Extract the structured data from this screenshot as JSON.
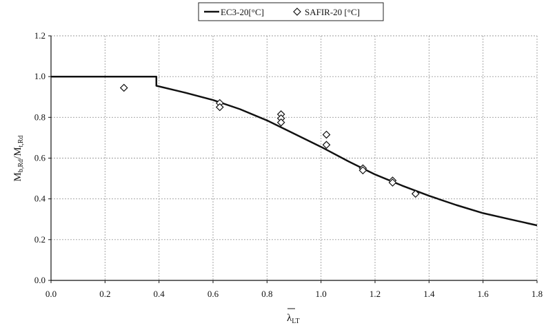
{
  "chart_data": {
    "type": "line",
    "xlim": [
      0.0,
      1.8
    ],
    "ylim": [
      0.0,
      1.2
    ],
    "x_ticks": [
      0.0,
      0.2,
      0.4,
      0.6,
      0.8,
      1.0,
      1.2,
      1.4,
      1.6,
      1.8
    ],
    "y_ticks": [
      0.0,
      0.2,
      0.4,
      0.6,
      0.8,
      1.0,
      1.2
    ],
    "x_tick_labels": [
      "0.0",
      "0.2",
      "0.4",
      "0.6",
      "0.8",
      "1.0",
      "1.2",
      "1.4",
      "1.6",
      "1.8"
    ],
    "y_tick_labels": [
      "0.0",
      "0.2",
      "0.4",
      "0.6",
      "0.8",
      "1.0",
      "1.2"
    ],
    "xlabel": {
      "main": "λ",
      "sub": "LT"
    },
    "ylabel": {
      "part1": "M",
      "sub1": "b,Rd",
      "sep": "/M",
      "sub2": "t,Rd"
    },
    "grid": true,
    "legend_placement": "top-center",
    "series": [
      {
        "name": "EC3-20[°C]",
        "kind": "line",
        "color": "#111111",
        "x": [
          0.0,
          0.39,
          0.39,
          0.5,
          0.6,
          0.7,
          0.8,
          0.9,
          1.0,
          1.1,
          1.2,
          1.3,
          1.4,
          1.5,
          1.6,
          1.7,
          1.8
        ],
        "y": [
          1.0,
          1.0,
          0.955,
          0.92,
          0.885,
          0.84,
          0.785,
          0.72,
          0.655,
          0.585,
          0.52,
          0.465,
          0.415,
          0.37,
          0.33,
          0.3,
          0.27
        ]
      },
      {
        "name": "SAFIR-20 [°C]",
        "kind": "scatter",
        "marker": "diamond-open",
        "color": "#111111",
        "x": [
          0.27,
          0.625,
          0.625,
          0.852,
          0.852,
          0.852,
          1.02,
          1.02,
          1.155,
          1.155,
          1.265,
          1.265,
          1.35
        ],
        "y": [
          0.945,
          0.87,
          0.85,
          0.815,
          0.795,
          0.775,
          0.715,
          0.665,
          0.55,
          0.54,
          0.49,
          0.48,
          0.425
        ]
      }
    ]
  }
}
